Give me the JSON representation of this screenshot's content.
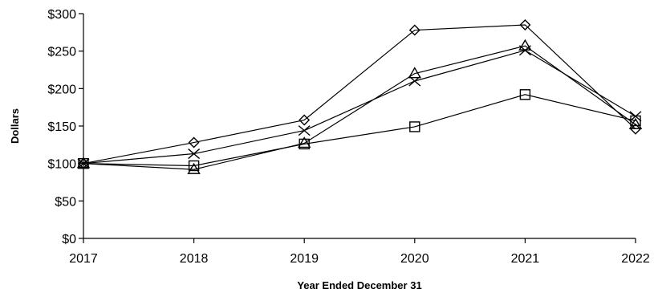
{
  "chart_data": {
    "type": "line",
    "title": "",
    "xlabel": "Year Ended December 31",
    "ylabel": "Dollars",
    "x": [
      2017,
      2018,
      2019,
      2020,
      2021,
      2022
    ],
    "x_tick_labels": [
      "2017",
      "2018",
      "2019",
      "2020",
      "2021",
      "2022"
    ],
    "y_tick_labels": [
      "$0",
      "$50",
      "$100",
      "$150",
      "$200",
      "$250",
      "$300"
    ],
    "y_ticks": [
      0,
      50,
      100,
      150,
      200,
      250,
      300
    ],
    "ylim": [
      0,
      300
    ],
    "grid": false,
    "legend": "none",
    "series": [
      {
        "marker": "diamond",
        "values": [
          100,
          128,
          158,
          278,
          285,
          146
        ]
      },
      {
        "marker": "x",
        "values": [
          100,
          113,
          144,
          210,
          251,
          163
        ]
      },
      {
        "marker": "triangle",
        "values": [
          100,
          92,
          127,
          220,
          257,
          152
        ]
      },
      {
        "marker": "square",
        "values": [
          100,
          97,
          126,
          149,
          192,
          157
        ]
      }
    ]
  }
}
